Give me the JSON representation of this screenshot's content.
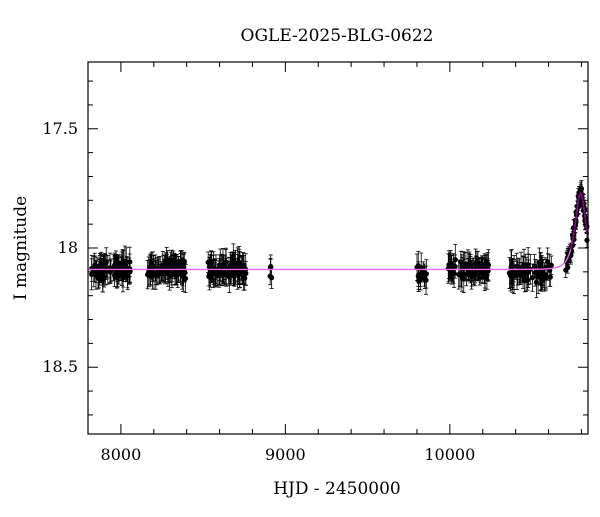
{
  "chart_data": {
    "type": "scatter",
    "title": "OGLE-2025-BLG-0622",
    "xlabel": "HJD - 2450000",
    "ylabel": "I magnitude",
    "xlim": [
      7800,
      10840
    ],
    "ylim": [
      18.78,
      17.22
    ],
    "y_inverted": true,
    "grid": false,
    "x_ticks": [
      {
        "value": 8000,
        "label": "8000"
      },
      {
        "value": 9000,
        "label": "9000"
      },
      {
        "value": 10000,
        "label": "10000"
      }
    ],
    "y_ticks": [
      {
        "value": 17.5,
        "label": "17.5"
      },
      {
        "value": 18,
        "label": "18"
      },
      {
        "value": 18.5,
        "label": "18.5"
      }
    ],
    "x_minor_step": 200,
    "y_minor_step": 0.1,
    "colors": {
      "points": "#000000",
      "model": "#ee66ee",
      "peak_model": "#880088"
    },
    "series": [
      {
        "kind": "points_with_errorbars",
        "season_groups": [
          {
            "x_range": [
              7820,
              8060
            ],
            "base_mag": 18.09,
            "n": 80,
            "err": 0.05
          },
          {
            "x_range": [
              8160,
              8400
            ],
            "base_mag": 18.09,
            "n": 80,
            "err": 0.05
          },
          {
            "x_range": [
              8530,
              8760
            ],
            "base_mag": 18.09,
            "n": 80,
            "err": 0.055
          },
          {
            "x_range": [
              8900,
              8920
            ],
            "base_mag": 18.08,
            "n": 5,
            "err": 0.04
          },
          {
            "x_range": [
              9800,
              9860
            ],
            "base_mag": 18.12,
            "n": 14,
            "err": 0.05
          },
          {
            "x_range": [
              9990,
              10240
            ],
            "base_mag": 18.09,
            "n": 75,
            "err": 0.05
          },
          {
            "x_range": [
              10360,
              10620
            ],
            "base_mag": 18.1,
            "n": 60,
            "err": 0.055
          },
          {
            "x_range": [
              10700,
              10840
            ],
            "base_mag": null,
            "n": 70,
            "err": 0.03
          }
        ]
      },
      {
        "kind": "model_curve",
        "baseline_mag": 18.09,
        "peak_time": 10795,
        "peak_mag": 17.77,
        "tE": 40
      }
    ]
  }
}
